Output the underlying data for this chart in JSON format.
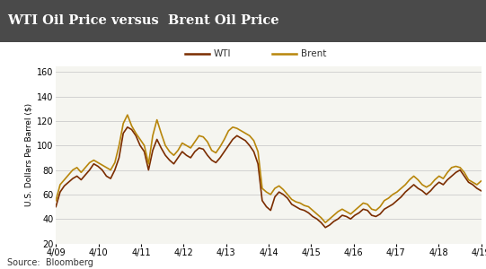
{
  "title": "WTI Oil Price versus  Brent Oil Price",
  "title_bg_color": "#4a4a4a",
  "title_text_color": "#ffffff",
  "ylabel": "U.S. Dollars Per Barrel ($)",
  "source_text": "Source:  Bloomberg",
  "wti_color": "#7B2D00",
  "brent_color": "#B8860B",
  "ylim": [
    20,
    165
  ],
  "yticks": [
    20,
    40,
    60,
    80,
    100,
    120,
    140,
    160
  ],
  "xtick_labels": [
    "4/09",
    "4/10",
    "4/11",
    "4/12",
    "4/13",
    "4/14",
    "4/15",
    "4/16",
    "4/17",
    "4/18",
    "4/19"
  ],
  "bg_color": "#f5f5f0",
  "grid_color": "#cccccc",
  "line_width": 1.2,
  "wti_values": [
    50,
    62,
    67,
    70,
    73,
    75,
    72,
    76,
    80,
    85,
    83,
    80,
    75,
    73,
    80,
    90,
    110,
    115,
    113,
    108,
    100,
    95,
    80,
    96,
    105,
    98,
    92,
    88,
    85,
    90,
    95,
    92,
    90,
    95,
    98,
    97,
    92,
    88,
    86,
    90,
    95,
    100,
    105,
    108,
    106,
    104,
    100,
    95,
    85,
    55,
    50,
    47,
    58,
    62,
    60,
    57,
    52,
    50,
    48,
    47,
    45,
    42,
    40,
    37,
    33,
    35,
    38,
    40,
    43,
    42,
    40,
    43,
    45,
    48,
    47,
    43,
    42,
    44,
    48,
    50,
    52,
    55,
    58,
    62,
    65,
    68,
    65,
    63,
    60,
    63,
    67,
    70,
    68,
    72,
    75,
    78,
    80,
    75,
    70,
    68,
    65,
    63
  ],
  "brent_values": [
    55,
    68,
    72,
    76,
    80,
    82,
    78,
    82,
    86,
    88,
    86,
    84,
    82,
    80,
    86,
    100,
    118,
    125,
    116,
    110,
    105,
    100,
    85,
    108,
    121,
    110,
    100,
    95,
    92,
    96,
    102,
    100,
    98,
    103,
    108,
    107,
    103,
    96,
    94,
    99,
    105,
    112,
    115,
    114,
    112,
    110,
    108,
    104,
    95,
    65,
    62,
    60,
    65,
    67,
    64,
    60,
    56,
    54,
    53,
    51,
    50,
    47,
    44,
    41,
    37,
    40,
    43,
    46,
    48,
    46,
    44,
    47,
    50,
    53,
    52,
    48,
    47,
    50,
    55,
    57,
    60,
    62,
    65,
    68,
    72,
    75,
    72,
    68,
    66,
    68,
    72,
    75,
    73,
    78,
    82,
    83,
    82,
    78,
    72,
    70,
    68,
    71
  ],
  "legend_area_color": "#ffffff",
  "title_fontsize": 10.5,
  "tick_fontsize": 7,
  "ylabel_fontsize": 6.5,
  "source_fontsize": 7
}
